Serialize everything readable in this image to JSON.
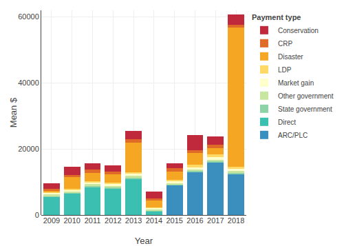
{
  "chart_data": {
    "type": "bar",
    "stacked": true,
    "categories": [
      "2009",
      "2010",
      "2011",
      "2012",
      "2013",
      "2014",
      "2015",
      "2016",
      "2017",
      "2018"
    ],
    "series": [
      {
        "name": "ARC/PLC",
        "color": "#3a8fbf",
        "values": [
          0,
          0,
          0,
          0,
          0,
          0,
          9000,
          13000,
          16000,
          12500
        ]
      },
      {
        "name": "Direct",
        "color": "#3abfb1",
        "values": [
          5500,
          6500,
          8500,
          8000,
          11000,
          1200,
          0,
          0,
          0,
          0
        ]
      },
      {
        "name": "State government",
        "color": "#8dd3a7",
        "values": [
          300,
          300,
          300,
          300,
          300,
          200,
          300,
          300,
          300,
          300
        ]
      },
      {
        "name": "Other government",
        "color": "#c8e6a0",
        "values": [
          400,
          400,
          500,
          500,
          500,
          300,
          400,
          500,
          500,
          500
        ]
      },
      {
        "name": "Market gain",
        "color": "#ffffcc",
        "values": [
          500,
          500,
          700,
          700,
          700,
          400,
          600,
          700,
          700,
          700
        ]
      },
      {
        "name": "LDP",
        "color": "#ffd966",
        "values": [
          200,
          200,
          300,
          300,
          500,
          200,
          400,
          700,
          800,
          700
        ]
      },
      {
        "name": "Disaster",
        "color": "#f5a623",
        "values": [
          500,
          3500,
          2500,
          2500,
          9000,
          2000,
          2500,
          3500,
          2000,
          42000
        ]
      },
      {
        "name": "CRP",
        "color": "#e06b28",
        "values": [
          600,
          700,
          900,
          900,
          900,
          700,
          900,
          1000,
          1000,
          1000
        ]
      },
      {
        "name": "Conservation",
        "color": "#c0283c",
        "values": [
          1500,
          2500,
          2000,
          1800,
          2500,
          2000,
          1500,
          4500,
          2500,
          3000
        ]
      }
    ],
    "xlabel": "Year",
    "ylabel": "Mean $",
    "legend_title": "Payment type",
    "legend": "right",
    "ylim": [
      0,
      62000
    ],
    "yticks": [
      0,
      20000,
      40000,
      60000
    ],
    "grid": true
  }
}
